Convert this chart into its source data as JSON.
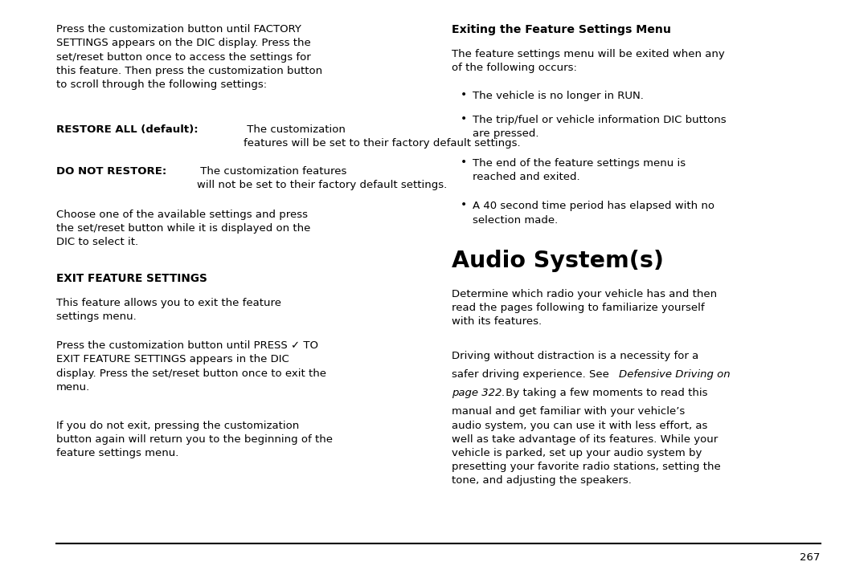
{
  "bg_color": "#ffffff",
  "text_color": "#000000",
  "page_number": "267",
  "left_col": {
    "para1": "Press the customization button until FACTORY\nSETTINGS appears on the DIC display. Press the\nset/reset button once to access the settings for\nthis feature. Then press the customization button\nto scroll through the following settings:",
    "bold1_label": "RESTORE ALL (default):",
    "bold1_rest": " The customization\nfeatures will be set to their factory default settings.",
    "bold2_label": "DO NOT RESTORE:",
    "bold2_rest": " The customization features\nwill not be set to their factory default settings.",
    "para2": "Choose one of the available settings and press\nthe set/reset button while it is displayed on the\nDIC to select it.",
    "subhead": "EXIT FEATURE SETTINGS",
    "para3": "This feature allows you to exit the feature\nsettings menu.",
    "para4": "Press the customization button until PRESS ✓ TO\nEXIT FEATURE SETTINGS appears in the DIC\ndisplay. Press the set/reset button once to exit the\nmenu.",
    "para5": "If you do not exit, pressing the customization\nbutton again will return you to the beginning of the\nfeature settings menu."
  },
  "right_col": {
    "subhead": "Exiting the Feature Settings Menu",
    "para1": "The feature settings menu will be exited when any\nof the following occurs:",
    "bullets": [
      "The vehicle is no longer in RUN.",
      "The trip/fuel or vehicle information DIC buttons\nare pressed.",
      "The end of the feature settings menu is\nreached and exited.",
      "A 40 second time period has elapsed with no\nselection made."
    ],
    "main_title": "Audio System(s)",
    "para2": "Determine which radio your vehicle has and then\nread the pages following to familiarize yourself\nwith its features.",
    "para3_line1": "Driving without distraction is a necessity for a",
    "para3_line2_norm": "safer driving experience. See ",
    "para3_line2_ital": "Defensive Driving on",
    "para3_line3_ital": "page 322.",
    "para3_line3_norm": " By taking a few moments to read this",
    "para3_rest": "manual and get familiar with your vehicle’s\naudio system, you can use it with less effort, as\nwell as take advantage of its features. While your\nvehicle is parked, set up your audio system by\npresetting your favorite radio stations, setting the\ntone, and adjusting the speakers."
  },
  "fs_body": 9.5,
  "fs_sub": 9.8,
  "fs_title": 20.5,
  "lm": 0.065,
  "rm": 0.945,
  "cs": 0.495,
  "page_num_fs": 9.5
}
